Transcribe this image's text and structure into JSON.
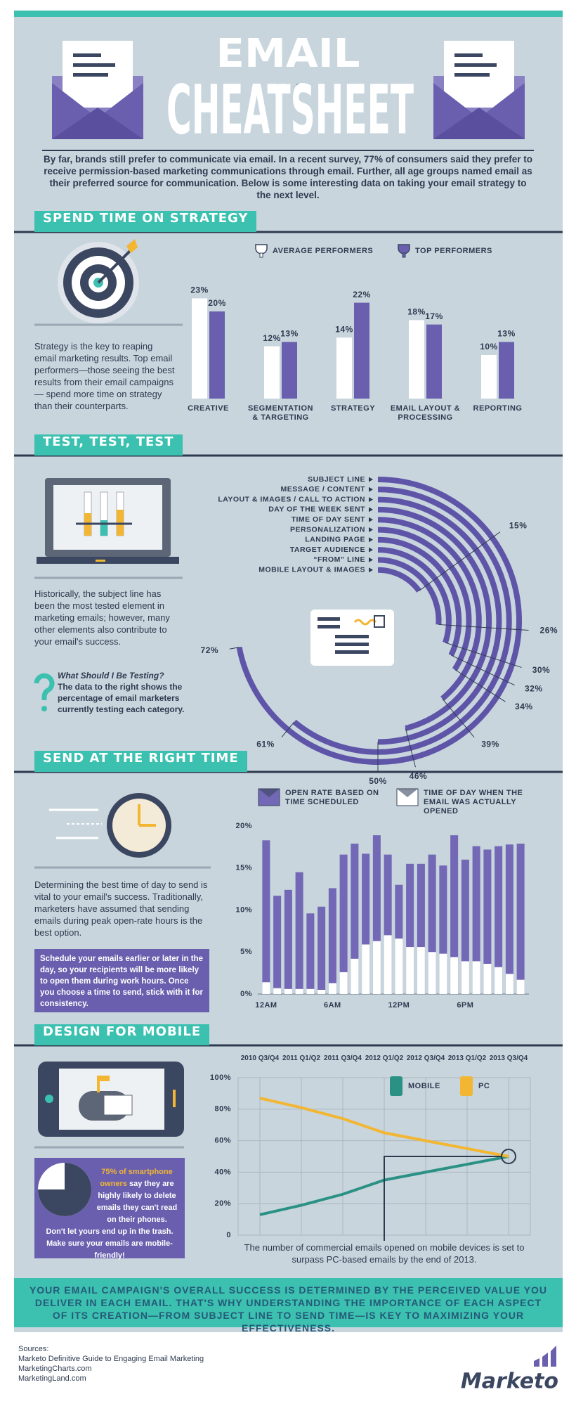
{
  "header": {
    "title_top": "EMAIL",
    "title_main": "CHEATSHEET",
    "intro": "By far, brands still prefer to communicate via email. In a recent survey, 77% of consumers said they prefer to receive permission-based marketing communications through email. Further, all age groups named email as their preferred source for communication. Below is some interesting data on taking your email strategy to the next level."
  },
  "sections": [
    {
      "heading": "SPEND TIME ON STRATEGY",
      "text": "Strategy is the key to reaping email marketing results. Top email performers—those seeing the best results from their email campaigns — spend more time on strategy than their counterparts."
    },
    {
      "heading": "TEST, TEST, TEST",
      "text": "Historically, the subject line has been the most tested element in marketing emails; however, many other elements also contribute to your email's success.",
      "question": "What Should I Be Testing?",
      "answer": "The data to the right shows the percentage of email marketers currently testing each category."
    },
    {
      "heading": "SEND AT THE RIGHT TIME",
      "text": "Determining the best time of day to send is vital to your email's success. Traditionally, marketers have assumed that sending emails during peak open-rate hours is the best option.",
      "tip": "Schedule your emails earlier or later in the day, so your recipients will be more likely to open them during work hours. Once you choose a time to send, stick with it for consistency."
    },
    {
      "heading": "DESIGN FOR MOBILE",
      "tip_highlight": "75% of smartphone owners",
      "tip": "say they are highly likely to delete emails they can't read on their phones. Don't let yours end up in the trash. Make sure your emails are mobile-friendly!",
      "caption": "The number of commercial emails opened on mobile devices is set to surpass PC-based emails by the end of 2013."
    }
  ],
  "chart_data": [
    {
      "type": "bar",
      "categories": [
        "CREATIVE",
        "SEGMENTATION & TARGETING",
        "STRATEGY",
        "EMAIL LAYOUT & PROCESSING",
        "REPORTING"
      ],
      "series": [
        {
          "name": "AVERAGE PERFORMERS",
          "color": "#ffffff",
          "values": [
            23,
            12,
            14,
            18,
            10
          ],
          "value_labels": [
            "23%",
            "12%",
            "14%",
            "18%",
            "10%"
          ]
        },
        {
          "name": "TOP PERFORMERS",
          "color": "#6a5fae",
          "values": [
            20,
            13,
            22,
            17,
            13
          ],
          "value_labels": [
            "20%",
            "13%",
            "22%",
            "17%",
            "13%"
          ]
        }
      ]
    },
    {
      "type": "radial-bar",
      "color": "#5f55a8",
      "categories": [
        "SUBJECT LINE",
        "MESSAGE / CONTENT",
        "LAYOUT & IMAGES / CALL TO ACTION",
        "DAY OF THE WEEK SENT",
        "TIME OF DAY SENT",
        "PERSONALIZATION",
        "LANDING PAGE",
        "TARGET AUDIENCE",
        "“FROM” LINE",
        "MOBILE LAYOUT & IMAGES"
      ],
      "values": [
        72,
        61,
        50,
        46,
        39,
        34,
        32,
        30,
        26,
        15
      ],
      "value_labels": [
        "72%",
        "61%",
        "50%",
        "46%",
        "39%",
        "34%",
        "32%",
        "30%",
        "26%",
        "15%"
      ]
    },
    {
      "type": "bar",
      "barmode": "overlay",
      "categories": [
        "12AM",
        null,
        null,
        null,
        null,
        null,
        "6AM",
        null,
        null,
        null,
        null,
        null,
        "12PM",
        null,
        null,
        null,
        null,
        null,
        "6PM",
        null,
        null,
        null,
        null,
        null
      ],
      "series": [
        {
          "name": "OPEN RATE BASED ON TIME SCHEDULED",
          "color": "#7268b5",
          "values": [
            18.3,
            11.7,
            12.4,
            14.5,
            9.6,
            10.4,
            12.6,
            16.6,
            17.9,
            16.7,
            18.9,
            16.6,
            13.0,
            15.5,
            15.5,
            16.6,
            15.3,
            18.9,
            16.0,
            17.6,
            17.2,
            17.6,
            17.8,
            17.9
          ]
        },
        {
          "name": "TIME OF DAY WHEN THE EMAIL WAS ACTUALLY OPENED",
          "color": "#ffffff",
          "values": [
            1.4,
            0.7,
            0.6,
            0.6,
            0.6,
            0.5,
            1.3,
            2.6,
            4.2,
            5.9,
            6.3,
            7.0,
            6.6,
            5.6,
            5.6,
            5.0,
            4.8,
            4.4,
            3.9,
            3.9,
            3.6,
            3.2,
            2.4,
            1.7
          ]
        }
      ],
      "ylim": [
        0,
        20
      ],
      "yticks": [
        {
          "value": 0,
          "label": "0%"
        },
        {
          "value": 5,
          "label": "5%"
        },
        {
          "value": 10,
          "label": "10%"
        },
        {
          "value": 15,
          "label": "15%"
        },
        {
          "value": 20,
          "label": "20%"
        }
      ],
      "grid": false
    },
    {
      "type": "line",
      "categories": [
        "2010 Q3/Q4",
        "2011 Q1/Q2",
        "2011 Q3/Q4",
        "2012 Q1/Q2",
        "2012 Q3/Q4",
        "2013 Q1/Q2",
        "2013 Q3/Q4"
      ],
      "series": [
        {
          "name": "MOBILE",
          "color": "#2a9184",
          "values": [
            13,
            19,
            26,
            35,
            40,
            45,
            50
          ]
        },
        {
          "name": "PC",
          "color": "#f2b632",
          "values": [
            87,
            81,
            74,
            65,
            60,
            55,
            50
          ]
        }
      ],
      "ylim": [
        0,
        100
      ],
      "yticks": [
        0,
        {
          "value": 20,
          "label": "20%"
        },
        {
          "value": 40,
          "label": "40%"
        },
        {
          "value": 60,
          "label": "60%"
        },
        {
          "value": 80,
          "label": "80%"
        },
        {
          "value": 100,
          "label": "100%"
        }
      ],
      "grid": true
    },
    {
      "type": "pie",
      "color": "#3b4660",
      "values": [
        75
      ]
    }
  ],
  "footer": {
    "banner": "YOUR EMAIL CAMPAIGN'S OVERALL SUCCESS IS DETERMINED BY THE PERCEIVED VALUE YOU DELIVER IN EACH EMAIL. THAT'S WHY UNDERSTANDING THE IMPORTANCE OF EACH ASPECT OF ITS CREATION—FROM SUBJECT LINE TO SEND TIME—IS KEY TO MAXIMIZING YOUR EFFECTIVENESS.",
    "sources_heading": "Sources:",
    "sources": [
      "Marketo Definitive Guide to Engaging Email Marketing",
      "MarketingCharts.com",
      "MarketingLand.com"
    ],
    "logo": "Marketo"
  }
}
